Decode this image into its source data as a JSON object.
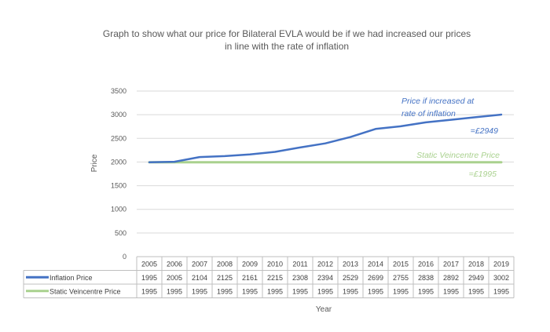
{
  "title_line1": "Graph to show what our price for Bilateral EVLA would be if we had increased our prices",
  "title_line2": "in line with the rate of inflation",
  "chart_data": {
    "type": "line",
    "title": "Graph to show what our price for Bilateral EVLA would be if we had increased our prices in line with the rate of inflation",
    "xlabel": "Year",
    "ylabel": "Price",
    "ylim": [
      0,
      3500
    ],
    "yticks": [
      0,
      500,
      1000,
      1500,
      2000,
      2500,
      3000,
      3500
    ],
    "grid": true,
    "categories": [
      "2005",
      "2006",
      "2007",
      "2008",
      "2009",
      "2010",
      "2011",
      "2012",
      "2013",
      "2014",
      "2015",
      "2016",
      "2017",
      "2018",
      "2019"
    ],
    "series": [
      {
        "name": "Inflation Price",
        "color": "#4472c4",
        "values": [
          1995,
          2005,
          2104,
          2125,
          2161,
          2215,
          2308,
          2394,
          2529,
          2699,
          2755,
          2838,
          2892,
          2949,
          3002
        ]
      },
      {
        "name": "Static Veincentre Price",
        "color": "#a9d18e",
        "values": [
          1995,
          1995,
          1995,
          1995,
          1995,
          1995,
          1995,
          1995,
          1995,
          1995,
          1995,
          1995,
          1995,
          1995,
          1995
        ]
      }
    ],
    "annotations": [
      {
        "lines": [
          "Price if increased at",
          "rate of inflation"
        ],
        "color": "#4472c4"
      },
      {
        "lines": [
          "=£2949"
        ],
        "color": "#4472c4"
      },
      {
        "lines": [
          "Static Veincentre Price"
        ],
        "color": "#a9d18e"
      },
      {
        "lines": [
          "=£1995"
        ],
        "color": "#a9d18e"
      }
    ]
  }
}
